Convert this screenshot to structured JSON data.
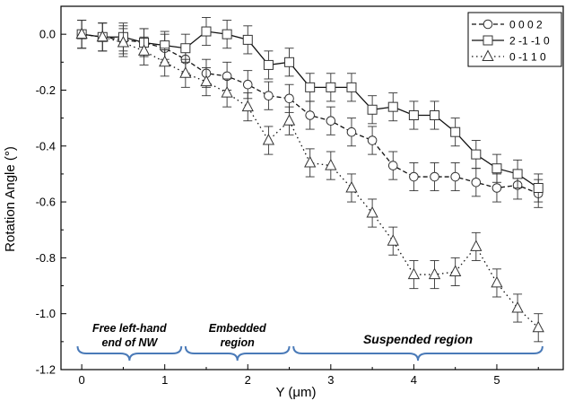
{
  "chart_data": {
    "type": "line",
    "xlabel": "Y (μm)",
    "ylabel": "Rotation Angle (°)",
    "xlim": [
      -0.25,
      5.8
    ],
    "ylim": [
      -1.2,
      0.1
    ],
    "xticks": [
      0,
      1,
      2,
      3,
      4,
      5
    ],
    "xtick_labels": [
      "0",
      "1",
      "2",
      "3",
      "4",
      "5"
    ],
    "yticks": [
      0.0,
      -0.2,
      -0.4,
      -0.6,
      -0.8,
      -1.0,
      -1.2
    ],
    "ytick_labels": [
      "0.0",
      "-0.2",
      "-0.4",
      "-0.6",
      "-0.8",
      "-1.0",
      "-1.2"
    ],
    "legend_position": "top-right",
    "series": [
      {
        "name": "0 0 0 2",
        "marker": "circle",
        "line": "dashed",
        "x": [
          0.0,
          0.25,
          0.5,
          0.75,
          1.0,
          1.25,
          1.5,
          1.75,
          2.0,
          2.25,
          2.5,
          2.75,
          3.0,
          3.25,
          3.5,
          3.75,
          4.0,
          4.25,
          4.5,
          4.75,
          5.0,
          5.25,
          5.5
        ],
        "y": [
          0.0,
          -0.01,
          -0.02,
          -0.03,
          -0.05,
          -0.09,
          -0.14,
          -0.15,
          -0.18,
          -0.22,
          -0.23,
          -0.29,
          -0.31,
          -0.35,
          -0.38,
          -0.47,
          -0.51,
          -0.51,
          -0.51,
          -0.53,
          -0.55,
          -0.54,
          -0.57
        ],
        "err": [
          0.05,
          0.05,
          0.05,
          0.05,
          0.05,
          0.05,
          0.05,
          0.05,
          0.05,
          0.05,
          0.05,
          0.05,
          0.05,
          0.05,
          0.05,
          0.05,
          0.05,
          0.05,
          0.05,
          0.05,
          0.05,
          0.05,
          0.05
        ]
      },
      {
        "name": "2 -1 -1 0",
        "marker": "square",
        "line": "solid",
        "x": [
          0.0,
          0.25,
          0.5,
          0.75,
          1.0,
          1.25,
          1.5,
          1.75,
          2.0,
          2.25,
          2.5,
          2.75,
          3.0,
          3.25,
          3.5,
          3.75,
          4.0,
          4.25,
          4.5,
          4.75,
          5.0,
          5.25,
          5.5
        ],
        "y": [
          0.0,
          -0.01,
          -0.01,
          -0.03,
          -0.04,
          -0.05,
          0.01,
          0.0,
          -0.02,
          -0.11,
          -0.1,
          -0.19,
          -0.19,
          -0.19,
          -0.27,
          -0.26,
          -0.29,
          -0.29,
          -0.35,
          -0.43,
          -0.48,
          -0.5,
          -0.55
        ],
        "err": [
          0.05,
          0.05,
          0.05,
          0.05,
          0.05,
          0.05,
          0.05,
          0.05,
          0.05,
          0.05,
          0.05,
          0.05,
          0.05,
          0.05,
          0.05,
          0.05,
          0.05,
          0.05,
          0.05,
          0.05,
          0.05,
          0.05,
          0.05
        ]
      },
      {
        "name": "0 -1 1 0",
        "marker": "triangle",
        "line": "dotted",
        "x": [
          0.0,
          0.25,
          0.5,
          0.75,
          1.0,
          1.25,
          1.5,
          1.75,
          2.0,
          2.25,
          2.5,
          2.75,
          3.0,
          3.25,
          3.5,
          3.75,
          4.0,
          4.25,
          4.5,
          4.75,
          5.0,
          5.25,
          5.5
        ],
        "y": [
          0.0,
          -0.01,
          -0.03,
          -0.06,
          -0.1,
          -0.14,
          -0.17,
          -0.21,
          -0.26,
          -0.38,
          -0.31,
          -0.46,
          -0.47,
          -0.55,
          -0.64,
          -0.74,
          -0.86,
          -0.86,
          -0.85,
          -0.76,
          -0.89,
          -0.98,
          -1.05
        ],
        "err": [
          0.05,
          0.05,
          0.05,
          0.05,
          0.05,
          0.05,
          0.05,
          0.05,
          0.05,
          0.05,
          0.05,
          0.05,
          0.05,
          0.05,
          0.05,
          0.05,
          0.05,
          0.05,
          0.05,
          0.05,
          0.05,
          0.05,
          0.05
        ]
      }
    ],
    "regions": [
      {
        "lines": [
          "Free left-hand",
          "end of NW"
        ],
        "x_start": -0.05,
        "x_end": 1.2,
        "style": "normal"
      },
      {
        "lines": [
          "Embedded",
          "region"
        ],
        "x_start": 1.25,
        "x_end": 2.5,
        "style": "normal"
      },
      {
        "lines": [
          "Suspended region"
        ],
        "x_start": 2.55,
        "x_end": 5.55,
        "style": "big"
      }
    ]
  }
}
